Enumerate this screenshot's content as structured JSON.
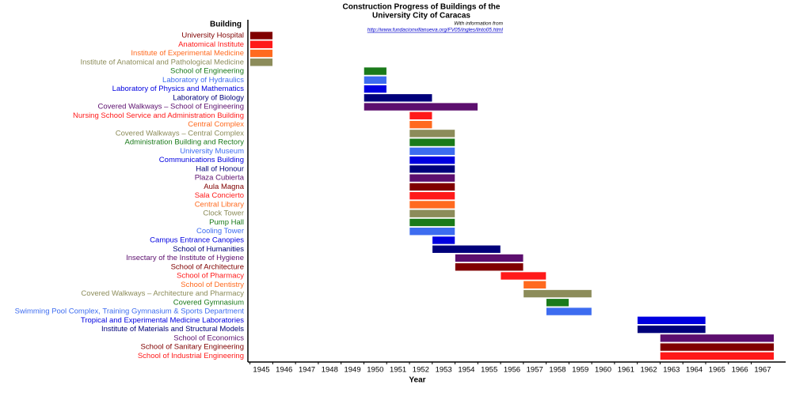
{
  "chart_data": {
    "type": "gantt",
    "title": [
      "Construction Progress of Buildings of the",
      "University City of Caracas"
    ],
    "note": "With information from",
    "source": "http://www.fundacionvillanueva.org/FV05/ingles/linto05.html",
    "y_label": "Building",
    "x_label": "Year",
    "categories": [
      "University Hospital",
      "Anatomical Institute",
      "Institute of Experimental Medicine",
      "Institute of Anatomical and Pathological Medicine",
      "School of Engineering",
      "Laboratory of Hydraulics",
      "Laboratory of Physics and Mathematics",
      "Laboratory of Biology",
      "Covered Walkways – School of Engineering",
      "Nursing School Service and Administration Building",
      "Central Complex",
      "Covered Walkways – Central Complex",
      "Administration Building and Rectory",
      "University Museum",
      "Communications Building",
      "Hall of Honour",
      "Plaza Cubierta",
      "Aula Magna",
      "Sala Concierto",
      "Central Library",
      "Clock Tower",
      "Pump Hall",
      "Cooling Tower",
      "Campus Entrance Canopies",
      "School of Humanities",
      "Insectary of the Institute of Hygiene",
      "School of Architecture",
      "School of Pharmacy",
      "School of Dentistry",
      "Covered Walkways – Architecture and Pharmacy",
      "Covered Gymnasium",
      "Swimming Pool Complex, Training Gymnasium & Sports Department",
      "Tropical and Experimental Medicine Laboratories",
      "Institute of Materials and Structural Models",
      "School of Economics",
      "School of Sanitary Engineering",
      "School of Industrial Engineering"
    ],
    "start": [
      1945,
      1945,
      1945,
      1945,
      1950,
      1950,
      1950,
      1950,
      1950,
      1952,
      1952,
      1952,
      1952,
      1952,
      1952,
      1952,
      1952,
      1952,
      1952,
      1952,
      1952,
      1952,
      1952,
      1953,
      1953,
      1954,
      1954,
      1956,
      1957,
      1957,
      1958,
      1958,
      1962,
      1962,
      1963,
      1963,
      1963
    ],
    "end": [
      1946,
      1946,
      1946,
      1946,
      1951,
      1951,
      1951,
      1953,
      1955,
      1953,
      1953,
      1954,
      1954,
      1954,
      1954,
      1954,
      1954,
      1954,
      1954,
      1954,
      1954,
      1954,
      1954,
      1954,
      1956,
      1957,
      1957,
      1958,
      1958,
      1960,
      1959,
      1960,
      1965,
      1965,
      1968,
      1968,
      1968
    ],
    "colors": [
      "#800000",
      "#ff1a1a",
      "#ff6a1f",
      "#8c8c5a",
      "#1a7a1a",
      "#3d6cf0",
      "#0000e0",
      "#00007a",
      "#5c0f6e",
      "#ff1a1a",
      "#ff6a1f",
      "#8c8c5a",
      "#1a7a1a",
      "#3d6cf0",
      "#0000e0",
      "#00007a",
      "#5c0f6e",
      "#800000",
      "#ff1a1a",
      "#ff6a1f",
      "#8c8c5a",
      "#1a7a1a",
      "#3d6cf0",
      "#0000e0",
      "#00007a",
      "#5c0f6e",
      "#800000",
      "#ff1a1a",
      "#ff6a1f",
      "#8c8c5a",
      "#1a7a1a",
      "#3d6cf0",
      "#0000e0",
      "#00007a",
      "#5c0f6e",
      "#800000",
      "#ff1a1a"
    ],
    "xlim": [
      1945,
      1968
    ],
    "xticks": [
      1945,
      1946,
      1947,
      1948,
      1949,
      1950,
      1951,
      1952,
      1953,
      1954,
      1955,
      1956,
      1957,
      1958,
      1959,
      1960,
      1961,
      1962,
      1963,
      1964,
      1965,
      1966,
      1967
    ]
  }
}
